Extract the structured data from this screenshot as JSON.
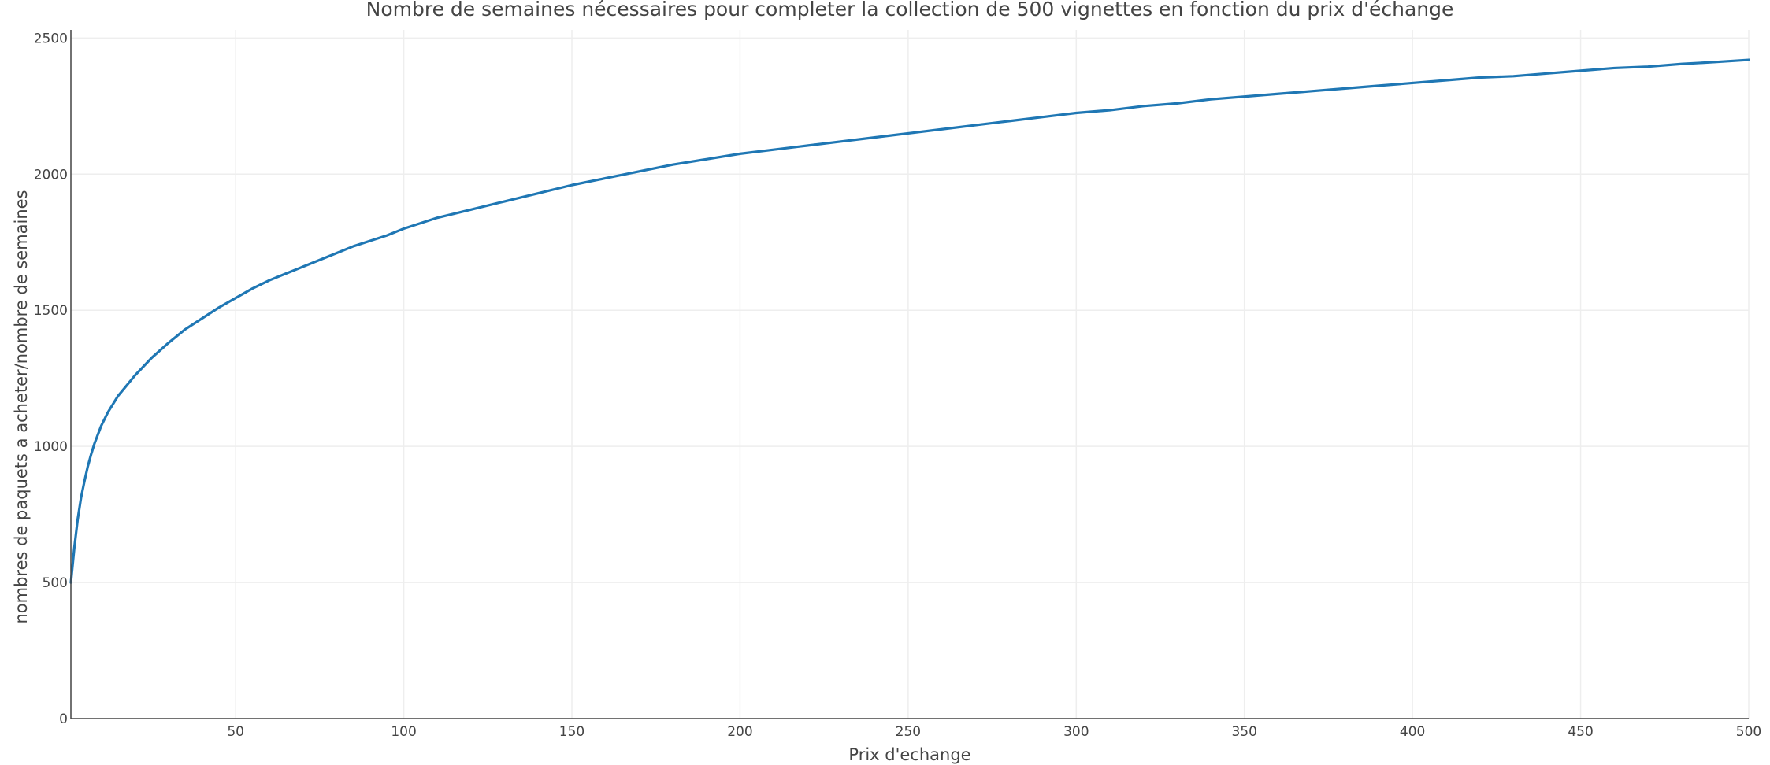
{
  "chart_data": {
    "type": "line",
    "title": "Nombre de semaines nécessaires pour completer la collection de 500 vignettes en fonction du prix d'échange",
    "xlabel": "Prix d'echange",
    "ylabel": "nombres de paquets a acheter/nombre de semaines",
    "xlim": [
      1,
      500
    ],
    "ylim": [
      0,
      2530
    ],
    "grid": true,
    "x_ticks": [
      50,
      100,
      150,
      200,
      250,
      300,
      350,
      400,
      450,
      500
    ],
    "x_tick_labels": [
      "50",
      "100",
      "150",
      "200",
      "250",
      "300",
      "350",
      "400",
      "450",
      "500"
    ],
    "y_ticks": [
      0,
      500,
      1000,
      1500,
      2000,
      2500
    ],
    "y_tick_labels": [
      "0",
      "500",
      "1000",
      "1500",
      "2000",
      "2500"
    ],
    "series": [
      {
        "color": "#1f77b4",
        "x": [
          1,
          2,
          3,
          4,
          5,
          6,
          7,
          8,
          10,
          12,
          15,
          18,
          20,
          25,
          30,
          35,
          40,
          45,
          50,
          55,
          60,
          65,
          70,
          75,
          80,
          85,
          90,
          95,
          100,
          110,
          120,
          130,
          140,
          150,
          160,
          170,
          180,
          190,
          200,
          210,
          220,
          230,
          240,
          250,
          260,
          270,
          280,
          290,
          300,
          310,
          320,
          330,
          340,
          350,
          360,
          370,
          380,
          390,
          400,
          410,
          420,
          430,
          440,
          450,
          460,
          470,
          480,
          490,
          500
        ],
        "y": [
          500,
          625,
          730,
          810,
          870,
          925,
          970,
          1010,
          1075,
          1125,
          1185,
          1230,
          1260,
          1325,
          1380,
          1430,
          1470,
          1510,
          1545,
          1580,
          1610,
          1635,
          1660,
          1685,
          1710,
          1735,
          1755,
          1775,
          1800,
          1840,
          1870,
          1900,
          1930,
          1960,
          1985,
          2010,
          2035,
          2055,
          2075,
          2090,
          2105,
          2120,
          2135,
          2150,
          2165,
          2180,
          2195,
          2210,
          2225,
          2235,
          2250,
          2260,
          2275,
          2285,
          2295,
          2305,
          2315,
          2325,
          2335,
          2345,
          2355,
          2360,
          2370,
          2380,
          2390,
          2395,
          2405,
          2412,
          2420
        ]
      }
    ]
  }
}
